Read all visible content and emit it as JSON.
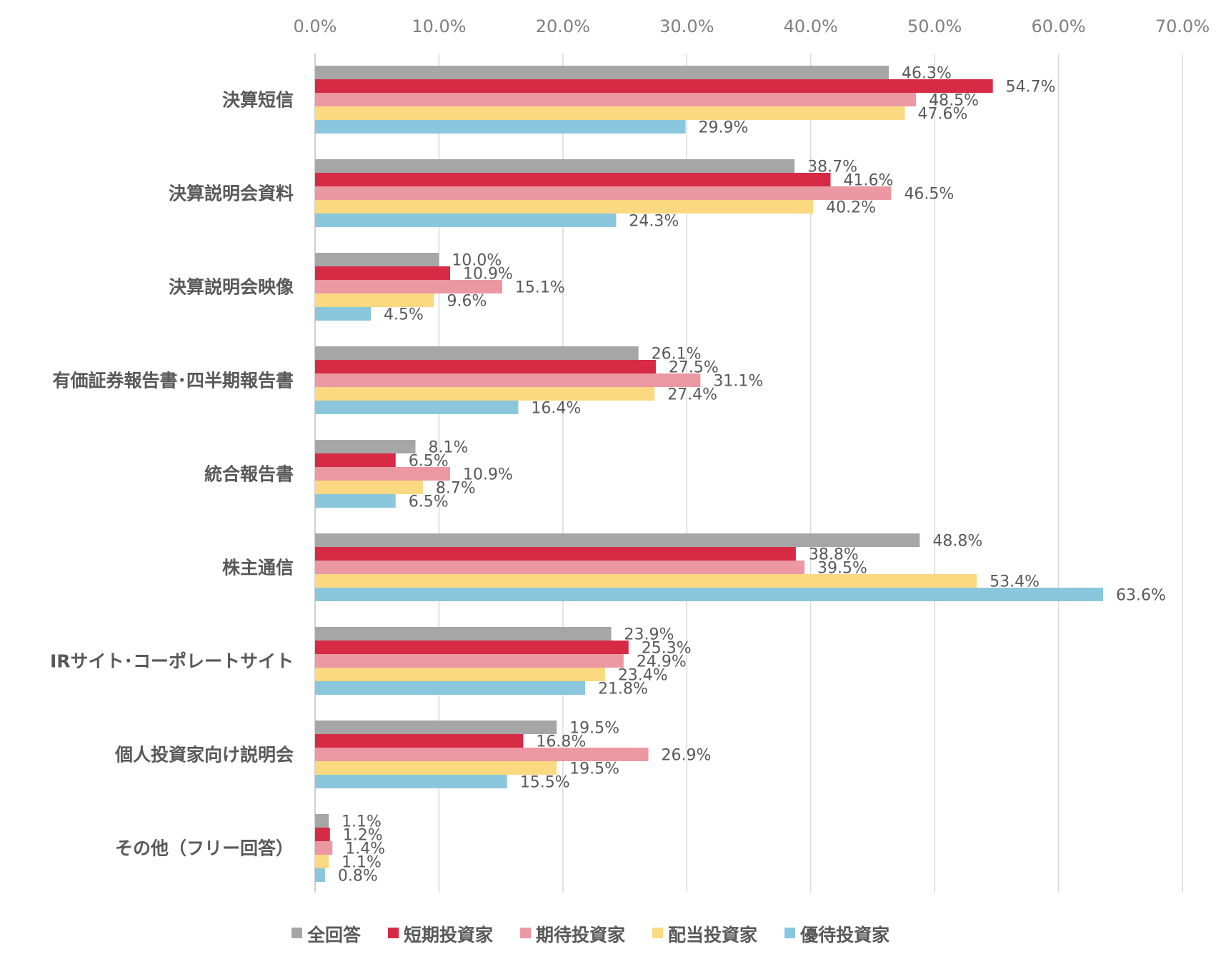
{
  "chart_data": {
    "type": "bar",
    "orientation": "horizontal",
    "title": "",
    "xlabel": "",
    "ylabel": "",
    "xlim": [
      0,
      70
    ],
    "x_ticks": [
      "0.0%",
      "10.0%",
      "20.0%",
      "30.0%",
      "40.0%",
      "50.0%",
      "60.0%",
      "70.0%"
    ],
    "grid": true,
    "legend_position": "bottom",
    "categories": [
      "決算短信",
      "決算説明会資料",
      "決算説明会映像",
      "有価証券報告書･四半期報告書",
      "統合報告書",
      "株主通信",
      "IRサイト･コーポレートサイト",
      "個人投資家向け説明会",
      "その他（フリー回答）"
    ],
    "series": [
      {
        "name": "全回答",
        "color": "#a6a6a6",
        "values": [
          46.3,
          38.7,
          10.0,
          26.1,
          8.1,
          48.8,
          23.9,
          19.5,
          1.1
        ]
      },
      {
        "name": "短期投資家",
        "color": "#d62a45",
        "values": [
          54.7,
          41.6,
          10.9,
          27.5,
          6.5,
          38.8,
          25.3,
          16.8,
          1.2
        ]
      },
      {
        "name": "期待投資家",
        "color": "#ec98a2",
        "values": [
          48.5,
          46.5,
          15.1,
          31.1,
          10.9,
          39.5,
          24.9,
          26.9,
          1.4
        ]
      },
      {
        "name": "配当投資家",
        "color": "#fad981",
        "values": [
          47.6,
          40.2,
          9.6,
          27.4,
          8.7,
          53.4,
          23.4,
          19.5,
          1.1
        ]
      },
      {
        "name": "優待投資家",
        "color": "#8ac7dc",
        "values": [
          29.9,
          24.3,
          4.5,
          16.4,
          6.5,
          63.6,
          21.8,
          15.5,
          0.8
        ]
      }
    ]
  }
}
